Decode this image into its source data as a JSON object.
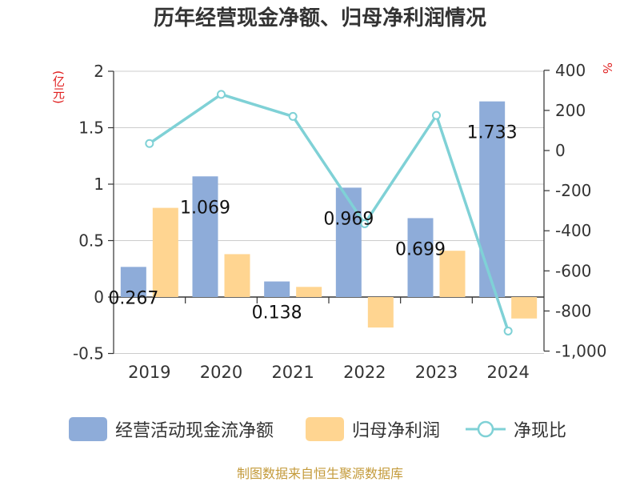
{
  "title": "历年经营现金净额、归母净利润情况",
  "source": "制图数据来自恒生聚源数据库",
  "colors": {
    "cashflow": "#8eacd9",
    "netprofit": "#ffd591",
    "ratio": "#7fd1d6",
    "unit": "#e02020",
    "axis": "#333333",
    "grid": "#cccccc"
  },
  "chart_data": {
    "type": "bar",
    "categories": [
      "2019",
      "2020",
      "2021",
      "2022",
      "2023",
      "2024"
    ],
    "series": [
      {
        "name": "经营活动现金流净额",
        "axis": "left",
        "type": "bar",
        "values": [
          0.267,
          1.069,
          0.138,
          0.969,
          0.699,
          1.733
        ]
      },
      {
        "name": "归母净利润",
        "axis": "left",
        "type": "bar",
        "values": [
          0.79,
          0.38,
          0.09,
          -0.27,
          0.41,
          -0.19
        ]
      },
      {
        "name": "净现比",
        "axis": "right",
        "type": "line",
        "values": [
          35,
          280,
          170,
          -365,
          175,
          -900
        ]
      }
    ],
    "data_labels": [
      "0.267",
      "1.069",
      "0.138",
      "0.969",
      "0.699",
      "1.733"
    ],
    "left_axis": {
      "label": "(亿元)",
      "ylim": [
        -0.5,
        2
      ],
      "ticks": [
        "-0.5",
        "0",
        "0.5",
        "1",
        "1.5",
        "2"
      ]
    },
    "right_axis": {
      "label": "%",
      "ylim": [
        -1000,
        400
      ],
      "ticks": [
        "-1,000",
        "-800",
        "-600",
        "-400",
        "-200",
        "0",
        "200",
        "400"
      ]
    },
    "grid": true,
    "legend_position": "bottom"
  }
}
